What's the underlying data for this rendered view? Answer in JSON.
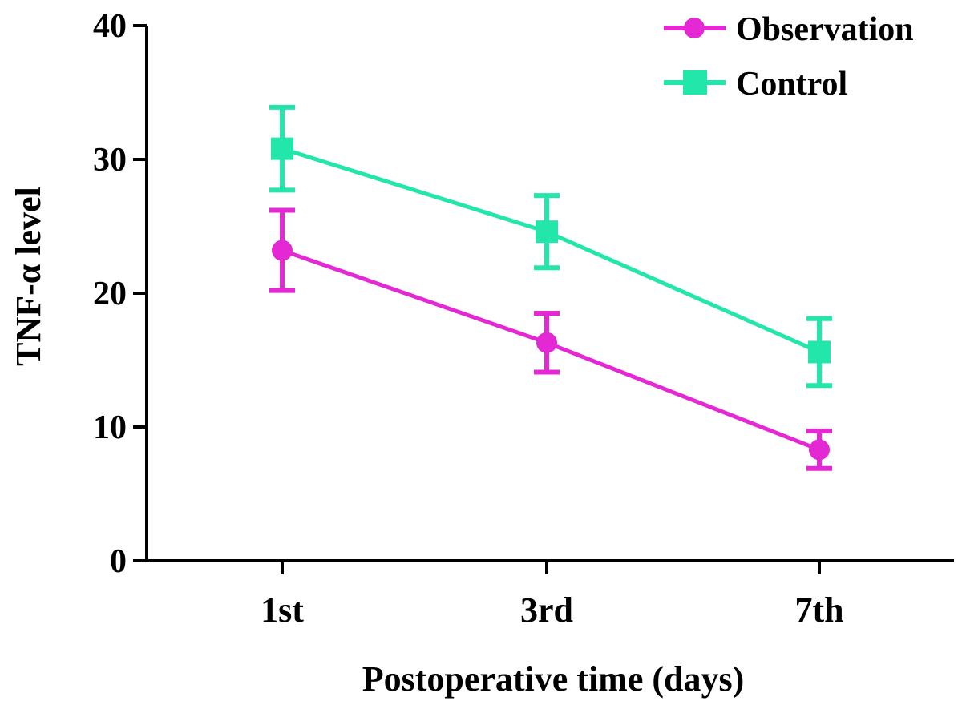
{
  "chart_data": {
    "type": "line",
    "title": "",
    "xlabel": "Postoperative time (days)",
    "ylabel": "TNF-α level",
    "categories": [
      "1st",
      "3rd",
      "7th"
    ],
    "ylim": [
      0,
      40
    ],
    "yticks": [
      0,
      10,
      20,
      30,
      40
    ],
    "grid": false,
    "legend_position": "top-right",
    "series": [
      {
        "name": "Observation",
        "marker": "circle",
        "color": "#E428D4",
        "values": [
          23.2,
          16.3,
          8.3
        ],
        "errors": [
          3.0,
          2.2,
          1.4
        ]
      },
      {
        "name": "Control",
        "marker": "square",
        "color": "#22E6AA",
        "values": [
          30.8,
          24.6,
          15.6
        ],
        "errors": [
          3.1,
          2.7,
          2.5
        ]
      }
    ]
  }
}
